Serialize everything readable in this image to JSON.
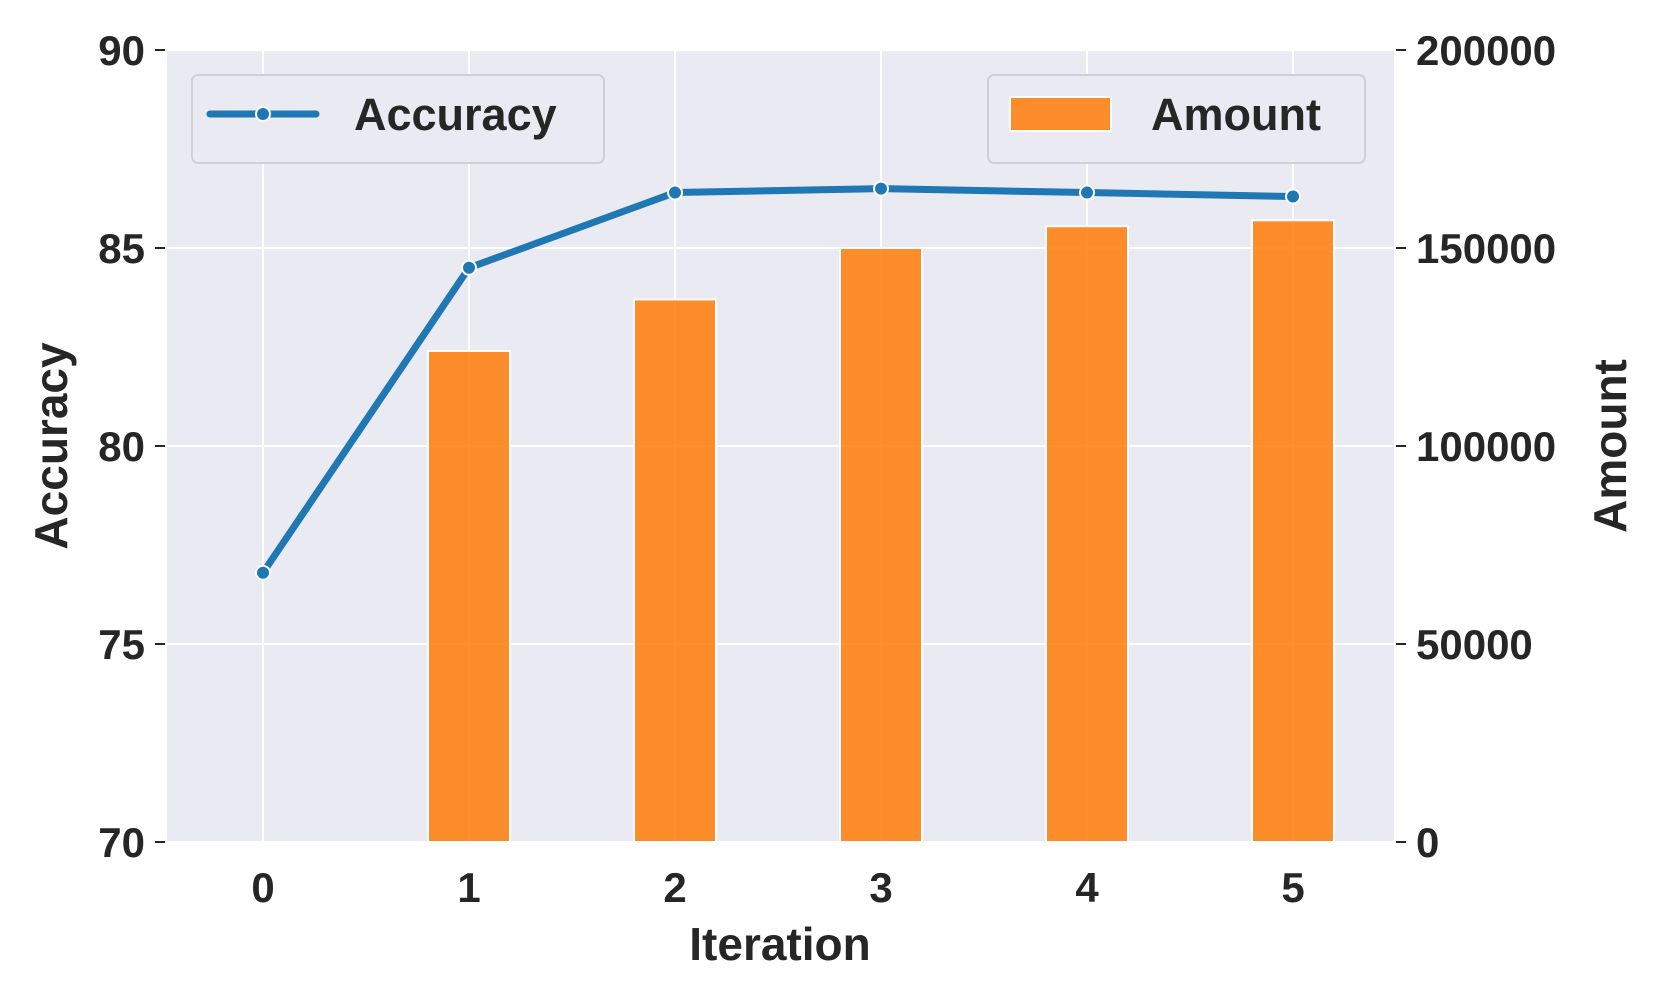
{
  "chart_data": {
    "type": "bar",
    "title": "",
    "xlabel": "Iteration",
    "ylabel": "Accuracy",
    "y2label": "Amount",
    "categories": [
      "0",
      "1",
      "2",
      "3",
      "4",
      "5"
    ],
    "x_ticks": [
      "0",
      "1",
      "2",
      "3",
      "4",
      "5"
    ],
    "ylim": [
      70,
      90
    ],
    "y_ticks": [
      "70",
      "75",
      "80",
      "85",
      "90"
    ],
    "y2lim": [
      0,
      200000
    ],
    "y2_ticks": [
      "0",
      "50000",
      "100000",
      "150000",
      "200000"
    ],
    "grid": true,
    "series": [
      {
        "name": "Accuracy",
        "kind": "line",
        "axis": "left",
        "color": "#1f77b4",
        "marker": "circle",
        "values": [
          76.8,
          84.5,
          86.4,
          86.5,
          86.4,
          86.3
        ]
      },
      {
        "name": "Amount",
        "kind": "bar",
        "axis": "right",
        "color": "#ff7f0e",
        "values": [
          null,
          124000,
          137000,
          150000,
          155500,
          157000
        ]
      }
    ],
    "legends": [
      {
        "series": "Accuracy",
        "placement": "top-left"
      },
      {
        "series": "Amount",
        "placement": "top-right"
      }
    ],
    "background": "#eaeaf2"
  }
}
